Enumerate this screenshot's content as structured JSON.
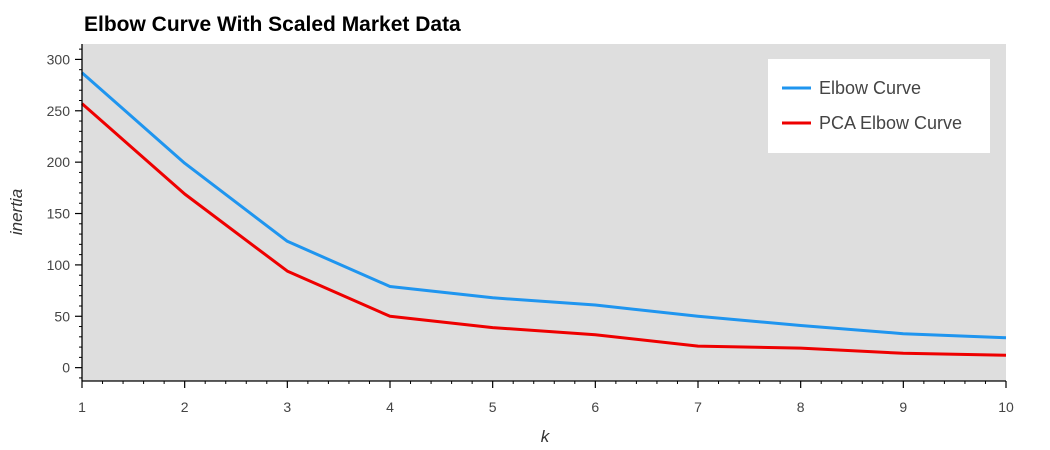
{
  "chart_data": {
    "type": "line",
    "title": "Elbow Curve With Scaled Market Data",
    "xlabel": "k",
    "ylabel": "inertia",
    "x": [
      1,
      2,
      3,
      4,
      5,
      6,
      7,
      8,
      9,
      10
    ],
    "xlim": [
      1,
      10
    ],
    "ylim": [
      -13,
      315
    ],
    "xticks": [
      1,
      2,
      3,
      4,
      5,
      6,
      7,
      8,
      9,
      10
    ],
    "yticks": [
      0,
      50,
      100,
      150,
      200,
      250,
      300
    ],
    "series": [
      {
        "name": "Elbow Curve",
        "color": "#1f95ef",
        "values": [
          287,
          199,
          123,
          79,
          68,
          61,
          50,
          41,
          33,
          29
        ]
      },
      {
        "name": "PCA Elbow Curve",
        "color": "#ee0000",
        "values": [
          257,
          169,
          94,
          50,
          39,
          32,
          21,
          19,
          14,
          12
        ]
      }
    ],
    "plot_background": "#dedede",
    "grid": false,
    "legend_position": "top-right"
  }
}
